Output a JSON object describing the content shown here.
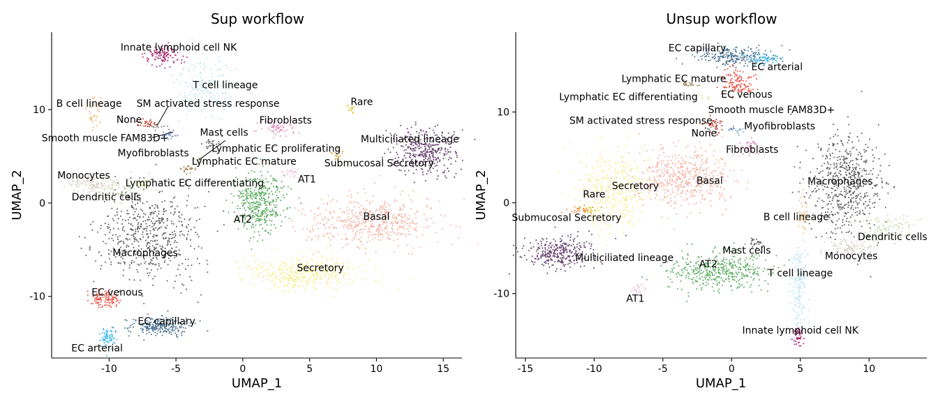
{
  "chart_data": [
    {
      "type": "scatter",
      "title": "Sup workflow",
      "xlabel": "UMAP_1",
      "ylabel": "UMAP_2",
      "xlim": [
        -14.3,
        16.4
      ],
      "ylim": [
        -16.6,
        18.3
      ],
      "xticks": [
        -10,
        -5,
        0,
        5,
        10,
        15
      ],
      "yticks": [
        -10,
        0,
        10
      ],
      "xtick_labels": [
        "-10",
        "-5",
        "0",
        "5",
        "10",
        "15"
      ],
      "ytick_labels": [
        "-10",
        "0",
        "10"
      ],
      "legend": "none",
      "clusters": [
        {
          "label": "Innate lymphoid cell NK",
          "color": "#a8236f",
          "cx": -6.0,
          "cy": 15.7,
          "sx": 0.7,
          "sy": 0.6,
          "n": 110,
          "tx": -4.8,
          "ty": 16.6
        },
        {
          "label": "T cell lineage",
          "color": "#bde3f1",
          "cx": -2.8,
          "cy": 12.3,
          "sx": 1.1,
          "sy": 1.7,
          "n": 170,
          "tx": -1.3,
          "ty": 12.6
        },
        {
          "label": "B cell lineage",
          "color": "#f4b870",
          "cx": -11.2,
          "cy": 9.4,
          "sx": 0.25,
          "sy": 0.9,
          "n": 40,
          "tx": -11.5,
          "ty": 10.6
        },
        {
          "label": "SM activated stress response",
          "color": "#b62b1a",
          "cx": -7.3,
          "cy": 8.6,
          "sx": 0.45,
          "sy": 0.2,
          "n": 30,
          "tx": -2.6,
          "ty": 10.6
        },
        {
          "label": "None",
          "color": "#777777",
          "cx": -6.4,
          "cy": 8.2,
          "sx": 0.3,
          "sy": 0.2,
          "n": 10,
          "tx": -8.5,
          "ty": 8.9
        },
        {
          "label": "Smooth muscle FAM83D+",
          "color": "#5a78b8",
          "cx": -5.5,
          "cy": 7.4,
          "sx": 0.35,
          "sy": 0.25,
          "n": 15,
          "tx": -10.3,
          "ty": 6.9
        },
        {
          "label": "Myofibroblasts",
          "color": "#7aa7d2",
          "cx": -5.6,
          "cy": 7.0,
          "sx": 0.3,
          "sy": 0.25,
          "n": 10,
          "tx": -6.7,
          "ty": 5.3
        },
        {
          "label": "Mast cells",
          "color": "#555555",
          "cx": -2.3,
          "cy": 6.3,
          "sx": 0.3,
          "sy": 0.3,
          "n": 25,
          "tx": -1.4,
          "ty": 7.5
        },
        {
          "label": "Lymphatic EC proliferating",
          "color": "#8aa85a",
          "cx": -3.3,
          "cy": 4.6,
          "sx": 0.2,
          "sy": 0.2,
          "n": 8,
          "tx": 2.5,
          "ty": 5.8
        },
        {
          "label": "Lymphatic EC mature",
          "color": "#9b7d4a",
          "cx": -4.0,
          "cy": 3.6,
          "sx": 0.3,
          "sy": 0.2,
          "n": 22,
          "tx": 0.1,
          "ty": 4.4
        },
        {
          "label": "Lymphatic EC differentiating",
          "color": "#d9e7a3",
          "cx": -7.4,
          "cy": 2.1,
          "sx": 0.35,
          "sy": 0.3,
          "n": 25,
          "tx": -3.6,
          "ty": 2.1
        },
        {
          "label": "Monocytes",
          "color": "#d8cfc6",
          "cx": -11.4,
          "cy": 2.1,
          "sx": 1.0,
          "sy": 0.5,
          "n": 130,
          "tx": -11.9,
          "ty": 2.9
        },
        {
          "label": "Dendritic cells",
          "color": "#c5ddb0",
          "cx": -9.0,
          "cy": 1.4,
          "sx": 0.9,
          "sy": 0.6,
          "n": 60,
          "tx": -10.2,
          "ty": 0.6
        },
        {
          "label": "Macrophages",
          "color": "#555555",
          "cx": -7.0,
          "cy": -3.2,
          "sx": 1.8,
          "sy": 2.6,
          "n": 560,
          "tx": -7.3,
          "ty": -5.4
        },
        {
          "label": "EC venous",
          "color": "#e84a3e",
          "cx": -10.3,
          "cy": -10.2,
          "sx": 0.55,
          "sy": 0.45,
          "n": 110,
          "tx": -9.4,
          "ty": -9.6
        },
        {
          "label": "EC capillary",
          "color": "#466c8c",
          "cx": -6.3,
          "cy": -13.2,
          "sx": 1.1,
          "sy": 0.55,
          "n": 230,
          "tx": -5.7,
          "ty": -12.7
        },
        {
          "label": "EC arterial",
          "color": "#3db7eb",
          "cx": -10.1,
          "cy": -14.3,
          "sx": 0.3,
          "sy": 0.5,
          "n": 70,
          "tx": -10.9,
          "ty": -15.6
        },
        {
          "label": "Rare",
          "color": "#e3c638",
          "cx": 8.0,
          "cy": 10.1,
          "sx": 0.2,
          "sy": 0.3,
          "n": 14,
          "tx": 8.9,
          "ty": 10.8
        },
        {
          "label": "Fibroblasts",
          "color": "#e08fbe",
          "cx": 2.6,
          "cy": 8.0,
          "sx": 0.8,
          "sy": 0.5,
          "n": 70,
          "tx": 3.2,
          "ty": 8.8
        },
        {
          "label": "Multiciliated lineage",
          "color": "#5e3968",
          "cx": 13.7,
          "cy": 5.6,
          "sx": 1.1,
          "sy": 1.2,
          "n": 340,
          "tx": 12.5,
          "ty": 6.8
        },
        {
          "label": "Submucosal Secretory",
          "color": "#c8a03c",
          "cx": 7.1,
          "cy": 5.2,
          "sx": 0.2,
          "sy": 0.4,
          "n": 20,
          "tx": 10.2,
          "ty": 4.2
        },
        {
          "label": "AT1",
          "color": "#ecc8dc",
          "cx": 3.6,
          "cy": 3.3,
          "sx": 0.3,
          "sy": 0.3,
          "n": 28,
          "tx": 4.8,
          "ty": 2.5
        },
        {
          "label": "AT2",
          "color": "#55a95b",
          "cx": 1.3,
          "cy": 0.0,
          "sx": 1.0,
          "sy": 1.6,
          "n": 420,
          "tx": 0.0,
          "ty": -1.8
        },
        {
          "label": "Basal",
          "color": "#f4b0a0",
          "cx": 9.5,
          "cy": -2.0,
          "sx": 2.4,
          "sy": 1.3,
          "n": 520,
          "tx": 10.0,
          "ty": -1.5
        },
        {
          "label": "Secretory",
          "color": "#f6ee98",
          "cx": 4.5,
          "cy": -7.5,
          "sx": 2.1,
          "sy": 0.9,
          "n": 480,
          "tx": 5.8,
          "ty": -7.0
        }
      ],
      "leaders": [
        {
          "from": [
            -6.4,
            8.3
          ],
          "to": [
            -5.6,
            10.3
          ]
        },
        {
          "from": [
            -6.8,
            7.0
          ],
          "to": [
            -5.2,
            7.6
          ]
        },
        {
          "from": [
            -3.3,
            4.6
          ],
          "to": [
            -1.3,
            6.7
          ]
        }
      ]
    },
    {
      "type": "scatter",
      "title": "Unsup workflow",
      "xlabel": "UMAP_1",
      "ylabel": "UMAP_2",
      "xlim": [
        -15.7,
        14.2
      ],
      "ylim": [
        -17.1,
        18.8
      ],
      "xticks": [
        -15,
        -10,
        -5,
        0,
        5,
        10
      ],
      "yticks": [
        -10,
        0,
        10
      ],
      "xtick_labels": [
        "-15",
        "-10",
        "-5",
        "0",
        "5",
        "10"
      ],
      "ytick_labels": [
        "-10",
        "0",
        "10"
      ],
      "legend": "none",
      "clusters": [
        {
          "label": "EC capillary",
          "color": "#466c8c",
          "cx": 0.3,
          "cy": 16.1,
          "sx": 1.4,
          "sy": 0.5,
          "n": 230,
          "tx": -2.5,
          "ty": 17.0
        },
        {
          "label": "EC arterial",
          "color": "#3db7eb",
          "cx": 2.3,
          "cy": 15.8,
          "sx": 0.6,
          "sy": 0.3,
          "n": 60,
          "tx": 3.3,
          "ty": 14.9
        },
        {
          "label": "Lymphatic EC mature",
          "color": "#9b7d4a",
          "cx": -3.0,
          "cy": 13.1,
          "sx": 0.3,
          "sy": 0.2,
          "n": 20,
          "tx": -4.2,
          "ty": 13.6
        },
        {
          "label": "EC venous",
          "color": "#e84a3e",
          "cx": 0.4,
          "cy": 13.3,
          "sx": 0.6,
          "sy": 0.8,
          "n": 120,
          "tx": 1.1,
          "ty": 11.9
        },
        {
          "label": "Lymphatic EC differentiating",
          "color": "#d9e7a3",
          "cx": -2.0,
          "cy": 11.6,
          "sx": 0.3,
          "sy": 0.2,
          "n": 8,
          "tx": -7.5,
          "ty": 11.6
        },
        {
          "label": "SM activated stress response",
          "color": "#b62b1a",
          "cx": -1.2,
          "cy": 8.6,
          "sx": 0.3,
          "sy": 0.5,
          "n": 35,
          "tx": -6.6,
          "ty": 9.0
        },
        {
          "label": "Smooth muscle FAM83D+",
          "color": "#5a78b8",
          "cx": 0.2,
          "cy": 8.1,
          "sx": 0.2,
          "sy": 0.2,
          "n": 8,
          "tx": 2.9,
          "ty": 10.2
        },
        {
          "label": "None",
          "color": "#777777",
          "cx": -1.8,
          "cy": 8.2,
          "sx": 0.2,
          "sy": 0.2,
          "n": 6,
          "tx": -2.0,
          "ty": 7.6
        },
        {
          "label": "Myofibroblasts",
          "color": "#7aa7d2",
          "cx": 0.6,
          "cy": 7.9,
          "sx": 0.25,
          "sy": 0.2,
          "n": 10,
          "tx": 3.5,
          "ty": 8.4
        },
        {
          "label": "Fibroblasts",
          "color": "#e08fbe",
          "cx": 1.3,
          "cy": 6.2,
          "sx": 0.3,
          "sy": 0.5,
          "n": 40,
          "tx": 1.5,
          "ty": 5.8
        },
        {
          "label": "Basal",
          "color": "#f4b0a0",
          "cx": -3.5,
          "cy": 2.8,
          "sx": 1.8,
          "sy": 1.6,
          "n": 520,
          "tx": -1.6,
          "ty": 2.4
        },
        {
          "label": "Secretory",
          "color": "#f6ee98",
          "cx": -8.7,
          "cy": 1.4,
          "sx": 1.3,
          "sy": 2.1,
          "n": 420,
          "tx": -7.0,
          "ty": 1.8
        },
        {
          "label": "Rare",
          "color": "#e3c638",
          "cx": -10.2,
          "cy": -0.8,
          "sx": 0.3,
          "sy": 0.2,
          "n": 14,
          "tx": -10.0,
          "ty": 0.9
        },
        {
          "label": "Submucosal Secretory",
          "color": "#e08a2e",
          "cx": -11.0,
          "cy": -0.8,
          "sx": 0.6,
          "sy": 0.25,
          "n": 30,
          "tx": -12.0,
          "ty": -1.7
        },
        {
          "label": "B cell lineage",
          "color": "#f4b870",
          "cx": 5.2,
          "cy": -1.6,
          "sx": 0.2,
          "sy": 1.1,
          "n": 40,
          "tx": 4.7,
          "ty": -1.6
        },
        {
          "label": "Mast cells",
          "color": "#555555",
          "cx": 1.8,
          "cy": -4.4,
          "sx": 0.3,
          "sy": 0.3,
          "n": 25,
          "tx": 1.1,
          "ty": -5.3
        },
        {
          "label": "Macrophages",
          "color": "#555555",
          "cx": 8.3,
          "cy": 2.2,
          "sx": 1.3,
          "sy": 2.8,
          "n": 560,
          "tx": 7.9,
          "ty": 2.3
        },
        {
          "label": "Dendritic cells",
          "color": "#c5ddb0",
          "cx": 11.5,
          "cy": -2.6,
          "sx": 1.3,
          "sy": 0.7,
          "n": 90,
          "tx": 11.7,
          "ty": -3.8
        },
        {
          "label": "Monocytes",
          "color": "#d8cfc6",
          "cx": 8.7,
          "cy": -5.0,
          "sx": 1.0,
          "sy": 0.6,
          "n": 120,
          "tx": 8.7,
          "ty": -5.9
        },
        {
          "label": "Multiciliated lineage",
          "color": "#5e3968",
          "cx": -12.7,
          "cy": -5.5,
          "sx": 1.3,
          "sy": 0.9,
          "n": 300,
          "tx": -7.8,
          "ty": -6.1
        },
        {
          "label": "AT2",
          "color": "#55a95b",
          "cx": -1.2,
          "cy": -7.5,
          "sx": 1.8,
          "sy": 1.0,
          "n": 430,
          "tx": -1.7,
          "ty": -6.8
        },
        {
          "label": "AT1",
          "color": "#ecc8dc",
          "cx": -6.8,
          "cy": -9.5,
          "sx": 0.3,
          "sy": 0.4,
          "n": 28,
          "tx": -7.0,
          "ty": -10.6
        },
        {
          "label": "T cell lineage",
          "color": "#bde3f1",
          "cx": 4.9,
          "cy": -9.5,
          "sx": 0.3,
          "sy": 2.5,
          "n": 170,
          "tx": 5.0,
          "ty": -7.8
        },
        {
          "label": "Innate lymphoid cell NK",
          "color": "#a8236f",
          "cx": 4.9,
          "cy": -14.7,
          "sx": 0.2,
          "sy": 0.5,
          "n": 45,
          "tx": 5.0,
          "ty": -14.1
        }
      ],
      "leaders": []
    }
  ]
}
